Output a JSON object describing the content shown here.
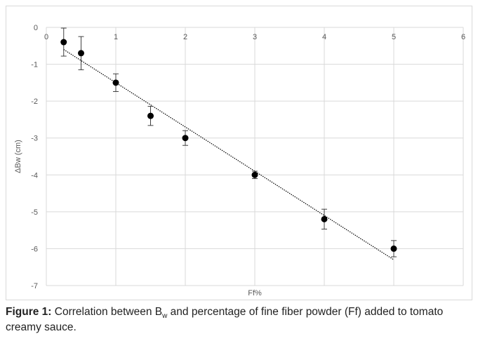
{
  "chart_data": {
    "type": "scatter",
    "title": "",
    "xlabel": "Ff%",
    "ylabel": "ΔBw (cm)",
    "xlim": [
      0,
      6
    ],
    "ylim": [
      -7,
      0
    ],
    "x_ticks": [
      "0",
      "1",
      "2",
      "3",
      "4",
      "5",
      "6"
    ],
    "y_ticks": [
      "0",
      "-1",
      "-2",
      "-3",
      "-4",
      "-5",
      "-6",
      "-7"
    ],
    "grid": true,
    "legend": "none",
    "series": [
      {
        "x": [
          0.25,
          0.5,
          1.0,
          1.5,
          2.0,
          3.0,
          4.0,
          5.0
        ],
        "y": [
          -0.4,
          -0.7,
          -1.5,
          -2.4,
          -3.0,
          -4.0,
          -5.2,
          -6.0
        ],
        "error": [
          0.38,
          0.45,
          0.24,
          0.26,
          0.2,
          0.1,
          0.27,
          0.22
        ]
      }
    ],
    "trendline": {
      "type": "linear",
      "x": [
        0.25,
        5.0
      ],
      "y": [
        -0.6,
        -6.3
      ]
    },
    "colors": {
      "marker": "#000000",
      "grid": "#d9d9d9",
      "axis_text": "#595959",
      "trendline": "#000000"
    }
  },
  "caption": {
    "label": "Figure 1:",
    "text_before_sub": " Correlation between B",
    "subscript": "w",
    "text_after_sub": " and percentage of fine fiber powder (Ff) added to tomato creamy sauce."
  }
}
